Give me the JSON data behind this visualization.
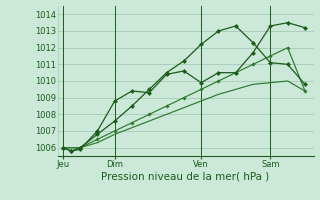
{
  "title": "",
  "xlabel": "Pression niveau de la mer( hPa )",
  "ylabel": "",
  "bg_color": "#cce8d8",
  "grid_color": "#aacfbc",
  "line_color_dark": "#1a5c1a",
  "line_color_mid": "#2d7a2d",
  "ylim": [
    1005.5,
    1014.5
  ],
  "yticks": [
    1006,
    1007,
    1008,
    1009,
    1010,
    1011,
    1012,
    1013,
    1014
  ],
  "tick_fontsize": 6,
  "label_fontsize": 7.5,
  "day_labels": [
    "Jeu",
    "Dim",
    "Ven",
    "Sam"
  ],
  "day_positions": [
    0,
    3,
    8,
    12
  ],
  "xlim": [
    -0.3,
    14.5
  ],
  "line1_x": [
    0,
    0.5,
    1,
    2,
    3,
    4,
    5,
    6,
    7,
    8,
    9,
    10,
    11,
    12,
    13,
    14
  ],
  "line1_y": [
    1006.0,
    1005.8,
    1005.9,
    1007.0,
    1008.8,
    1009.4,
    1009.3,
    1010.4,
    1010.6,
    1009.9,
    1010.5,
    1010.5,
    1011.7,
    1013.3,
    1013.5,
    1013.2
  ],
  "line2_x": [
    0,
    0.5,
    1,
    2,
    3,
    4,
    5,
    6,
    7,
    8,
    9,
    10,
    11,
    12,
    13,
    14
  ],
  "line2_y": [
    1006.0,
    1005.8,
    1006.0,
    1006.8,
    1007.6,
    1008.5,
    1009.5,
    1010.5,
    1011.2,
    1012.2,
    1013.0,
    1013.3,
    1012.3,
    1011.1,
    1011.0,
    1009.8
  ],
  "line3_x": [
    0,
    1,
    2,
    3,
    4,
    5,
    6,
    7,
    8,
    9,
    10,
    11,
    12,
    13,
    14
  ],
  "line3_y": [
    1006.0,
    1006.0,
    1006.5,
    1007.0,
    1007.5,
    1008.0,
    1008.5,
    1009.0,
    1009.5,
    1010.0,
    1010.5,
    1011.0,
    1011.5,
    1012.0,
    1009.4
  ],
  "line4_x": [
    0,
    1,
    2,
    3,
    4,
    5,
    6,
    7,
    8,
    9,
    10,
    11,
    12,
    13,
    14
  ],
  "line4_y": [
    1006.0,
    1006.0,
    1006.3,
    1006.8,
    1007.2,
    1007.6,
    1008.0,
    1008.4,
    1008.8,
    1009.2,
    1009.5,
    1009.8,
    1009.9,
    1010.0,
    1009.4
  ],
  "vline_positions": [
    0,
    3,
    8,
    12
  ]
}
